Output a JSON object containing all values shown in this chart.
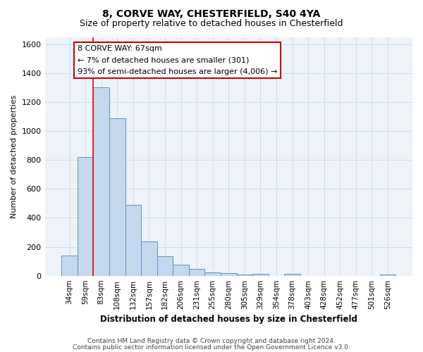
{
  "title1": "8, CORVE WAY, CHESTERFIELD, S40 4YA",
  "title2": "Size of property relative to detached houses in Chesterfield",
  "xlabel": "Distribution of detached houses by size in Chesterfield",
  "ylabel": "Number of detached properties",
  "categories": [
    "34sqm",
    "59sqm",
    "83sqm",
    "108sqm",
    "132sqm",
    "157sqm",
    "182sqm",
    "206sqm",
    "231sqm",
    "255sqm",
    "280sqm",
    "305sqm",
    "329sqm",
    "354sqm",
    "378sqm",
    "403sqm",
    "428sqm",
    "452sqm",
    "477sqm",
    "501sqm",
    "526sqm"
  ],
  "values": [
    140,
    820,
    1300,
    1090,
    490,
    235,
    135,
    75,
    45,
    25,
    20,
    10,
    15,
    0,
    12,
    0,
    0,
    0,
    0,
    0,
    10
  ],
  "bar_color": "#c5d9ee",
  "bar_edge_color": "#5b8ec4",
  "red_line_x": 1.5,
  "ylim": [
    0,
    1650
  ],
  "yticks": [
    0,
    200,
    400,
    600,
    800,
    1000,
    1200,
    1400,
    1600
  ],
  "annotation_line1": "8 CORVE WAY: 67sqm",
  "annotation_line2": "← 7% of detached houses are smaller (301)",
  "annotation_line3": "93% of semi-detached houses are larger (4,006) →",
  "annotation_box_color": "#ffffff",
  "annotation_box_edge": "#cc0000",
  "footer1": "Contains HM Land Registry data © Crown copyright and database right 2024.",
  "footer2": "Contains public sector information licensed under the Open Government Licence v3.0.",
  "background_color": "#eef3fa",
  "grid_color": "#c8d4e8",
  "title1_fontsize": 10,
  "title2_fontsize": 9
}
